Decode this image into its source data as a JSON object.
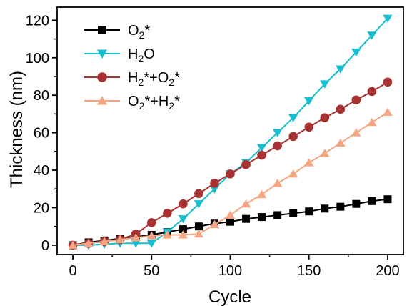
{
  "chart_data": {
    "type": "line",
    "title": "",
    "xlabel": "Cycle",
    "ylabel": "Thickness (nm)",
    "xlim": [
      -10,
      210
    ],
    "ylim": [
      -5,
      127
    ],
    "xticks": [
      0,
      50,
      100,
      150,
      200
    ],
    "yticks": [
      0,
      20,
      40,
      60,
      80,
      100,
      120
    ],
    "grid": false,
    "legend_position": "top-left",
    "x": [
      0,
      10,
      20,
      30,
      40,
      50,
      60,
      70,
      80,
      90,
      100,
      110,
      120,
      130,
      140,
      150,
      160,
      170,
      180,
      190,
      200
    ],
    "series": [
      {
        "name": "O2*",
        "label_parts": [
          {
            "t": "O"
          },
          {
            "t": "2",
            "s": "sub"
          },
          {
            "t": "*"
          }
        ],
        "color": "#000000",
        "marker": "square",
        "values": [
          0,
          1.5,
          2.5,
          3.5,
          4.5,
          5.5,
          7,
          8.5,
          10,
          11.5,
          12.5,
          14,
          15,
          16,
          17,
          18,
          19.5,
          20.5,
          22,
          23.5,
          24.5
        ]
      },
      {
        "name": "H2O",
        "label_parts": [
          {
            "t": "H"
          },
          {
            "t": "2",
            "s": "sub"
          },
          {
            "t": "O"
          }
        ],
        "color": "#17becf",
        "marker": "triangle-down",
        "values": [
          0,
          0,
          0.5,
          1,
          1,
          1,
          7,
          14,
          22,
          30,
          38,
          44,
          52,
          60,
          68,
          77,
          86,
          94,
          103,
          112,
          121
        ]
      },
      {
        "name": "H2*+O2*",
        "label_parts": [
          {
            "t": "H"
          },
          {
            "t": "2",
            "s": "sub"
          },
          {
            "t": "*+O"
          },
          {
            "t": "2",
            "s": "sub"
          },
          {
            "t": "*"
          }
        ],
        "color": "#a83232",
        "marker": "circle",
        "values": [
          0,
          1,
          2,
          3,
          6,
          12,
          17,
          22,
          27.5,
          33,
          38,
          43,
          48,
          53,
          58,
          63,
          68,
          72.5,
          77.5,
          82,
          87
        ]
      },
      {
        "name": "O2*+H2*",
        "label_parts": [
          {
            "t": "O"
          },
          {
            "t": "2",
            "s": "sub"
          },
          {
            "t": "*+H"
          },
          {
            "t": "2",
            "s": "sub"
          },
          {
            "t": "*"
          }
        ],
        "color": "#f4a582",
        "marker": "triangle-up",
        "values": [
          0,
          1,
          2,
          3,
          4,
          5,
          5.5,
          5.5,
          6,
          11,
          16,
          22,
          27,
          33,
          38,
          44,
          49,
          54.5,
          60,
          65.5,
          71
        ]
      }
    ]
  }
}
